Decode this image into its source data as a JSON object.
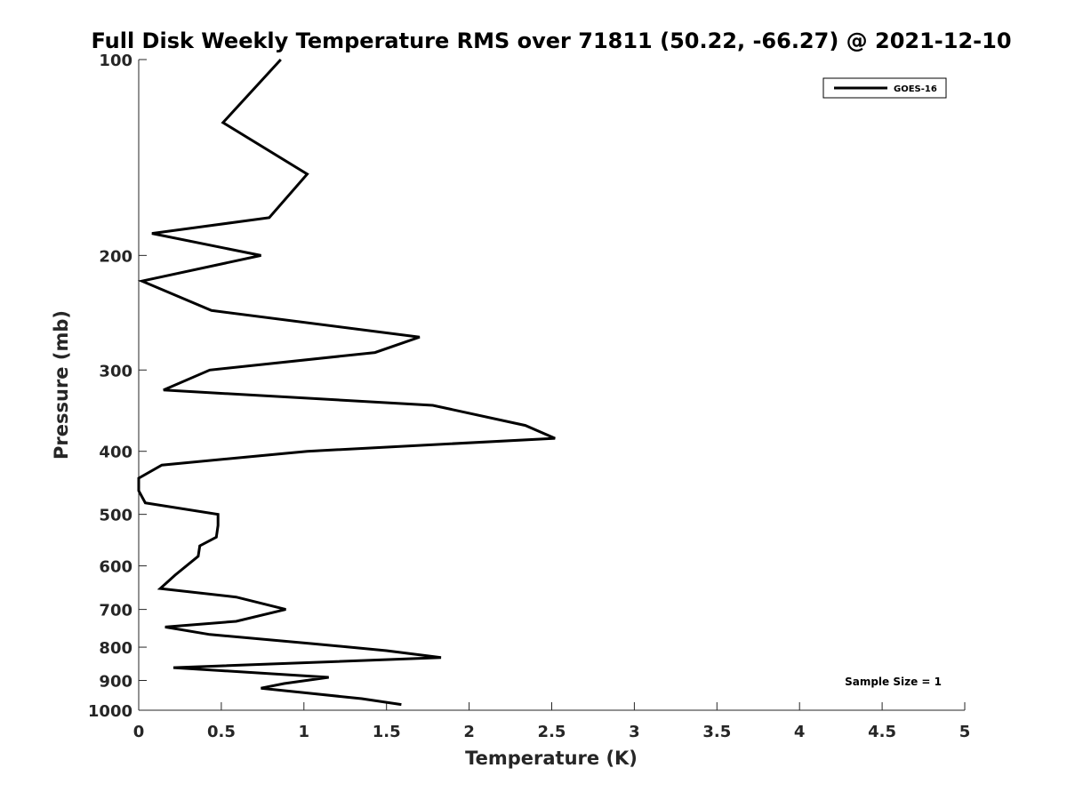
{
  "chart_data": {
    "type": "line",
    "title": "Full Disk Weekly Temperature RMS over 71811 (50.22, -66.27) @ 2021-12-10",
    "xlabel": "Temperature (K)",
    "ylabel": "Pressure (mb)",
    "xlim": [
      0,
      5
    ],
    "ylim": [
      100,
      1000
    ],
    "yscale": "log",
    "y_reversed": true,
    "grid": false,
    "x_ticks": [
      "0",
      "0.5",
      "1",
      "1.5",
      "2",
      "2.5",
      "3",
      "3.5",
      "4",
      "4.5",
      "5"
    ],
    "x_tick_values": [
      0,
      0.5,
      1,
      1.5,
      2,
      2.5,
      3,
      3.5,
      4,
      4.5,
      5
    ],
    "y_ticks": [
      "100",
      "200",
      "300",
      "400",
      "500",
      "600",
      "700",
      "800",
      "900",
      "1000"
    ],
    "y_tick_values": [
      100,
      200,
      300,
      400,
      500,
      600,
      700,
      800,
      900,
      1000
    ],
    "legend_position": "top-right",
    "series": [
      {
        "name": "GOES-16",
        "color": "#000000",
        "temperature": [
          0.86,
          0.51,
          1.02,
          0.79,
          0.08,
          0.74,
          0.02,
          0.44,
          1.7,
          1.43,
          0.43,
          0.15,
          1.78,
          2.34,
          2.52,
          1.02,
          0.14,
          0.0,
          0.0,
          0.04,
          0.48,
          0.48,
          0.47,
          0.37,
          0.36,
          0.22,
          0.13,
          0.59,
          0.89,
          0.59,
          0.16,
          0.43,
          1.05,
          1.5,
          1.83,
          0.21,
          1.15,
          0.88,
          0.74,
          1.0,
          1.35,
          1.59
        ],
        "pressure": [
          100,
          125,
          150,
          175,
          185,
          200,
          219,
          243,
          267,
          282,
          300,
          322,
          340,
          365,
          382,
          400,
          420,
          440,
          460,
          480,
          500,
          520,
          542,
          559,
          580,
          620,
          650,
          670,
          700,
          730,
          745,
          765,
          790,
          810,
          830,
          860,
          890,
          910,
          925,
          940,
          960,
          980
        ]
      }
    ],
    "annotations": [
      {
        "text": "Sample Size = 1",
        "position": "bottom-right"
      }
    ]
  }
}
